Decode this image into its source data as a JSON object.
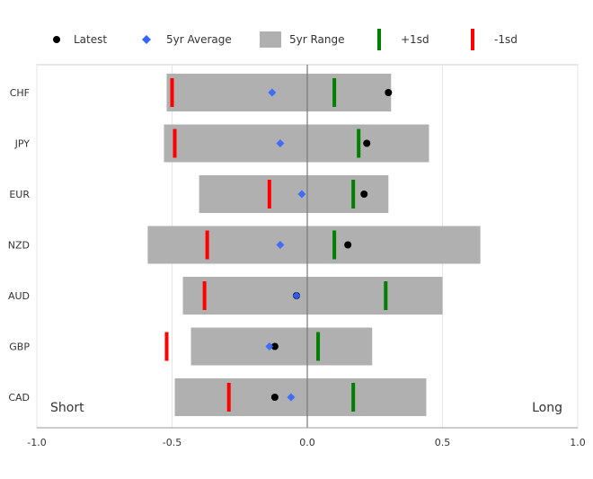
{
  "chart_data": {
    "type": "range-dot",
    "categories": [
      "CHF",
      "JPY",
      "EUR",
      "NZD",
      "AUD",
      "GBP",
      "CAD"
    ],
    "series": [
      {
        "name": "Latest",
        "values": [
          0.3,
          0.22,
          0.21,
          0.15,
          -0.04,
          -0.12,
          -0.12
        ]
      },
      {
        "name": "5yr Average",
        "values": [
          -0.13,
          -0.1,
          -0.02,
          -0.1,
          -0.04,
          -0.14,
          -0.06
        ]
      },
      {
        "name": "5yr Range",
        "min": [
          -0.52,
          -0.53,
          -0.4,
          -0.59,
          -0.46,
          -0.43,
          -0.49
        ],
        "max": [
          0.31,
          0.45,
          0.3,
          0.64,
          0.5,
          0.24,
          0.44
        ]
      },
      {
        "name": "+1sd",
        "values": [
          0.1,
          0.19,
          0.17,
          0.1,
          0.29,
          0.04,
          0.17
        ]
      },
      {
        "name": "-1sd",
        "values": [
          -0.5,
          -0.49,
          -0.14,
          -0.37,
          -0.38,
          -0.52,
          -0.29
        ]
      }
    ],
    "xlim": [
      -1.0,
      1.0
    ],
    "xticks": [
      "-1.0",
      "-0.5",
      "0.0",
      "0.5",
      "1.0"
    ],
    "xtick_values": [
      -1.0,
      -0.5,
      0.0,
      0.5,
      1.0
    ],
    "annotations": {
      "left": "Short",
      "right": "Long"
    },
    "legend_position": "top",
    "grid": true,
    "colors": {
      "latest": "#000000",
      "average": "#3366ff",
      "range": "#b0b0b0",
      "plus_sd": "#008000",
      "minus_sd": "#ff0000"
    }
  }
}
